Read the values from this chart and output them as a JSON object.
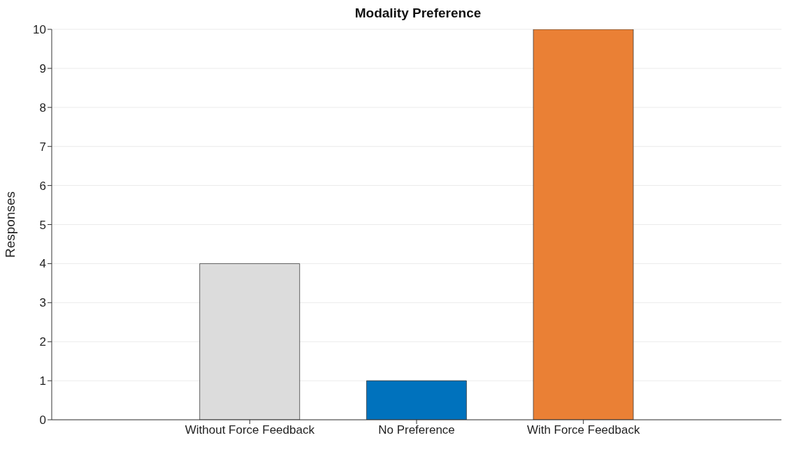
{
  "chart_data": {
    "type": "bar",
    "title": "Modality Preference",
    "ylabel": "Responses",
    "categories": [
      "Without Force Feedback",
      "No Preference",
      "With Force Feedback"
    ],
    "values": [
      4,
      1,
      10
    ],
    "colors": [
      "#dcdcdc",
      "#0072bd",
      "#ea8035"
    ],
    "ylim": [
      0,
      10
    ],
    "yticks": [
      0,
      1,
      2,
      3,
      4,
      5,
      6,
      7,
      8,
      9,
      10
    ],
    "grid": "y"
  }
}
